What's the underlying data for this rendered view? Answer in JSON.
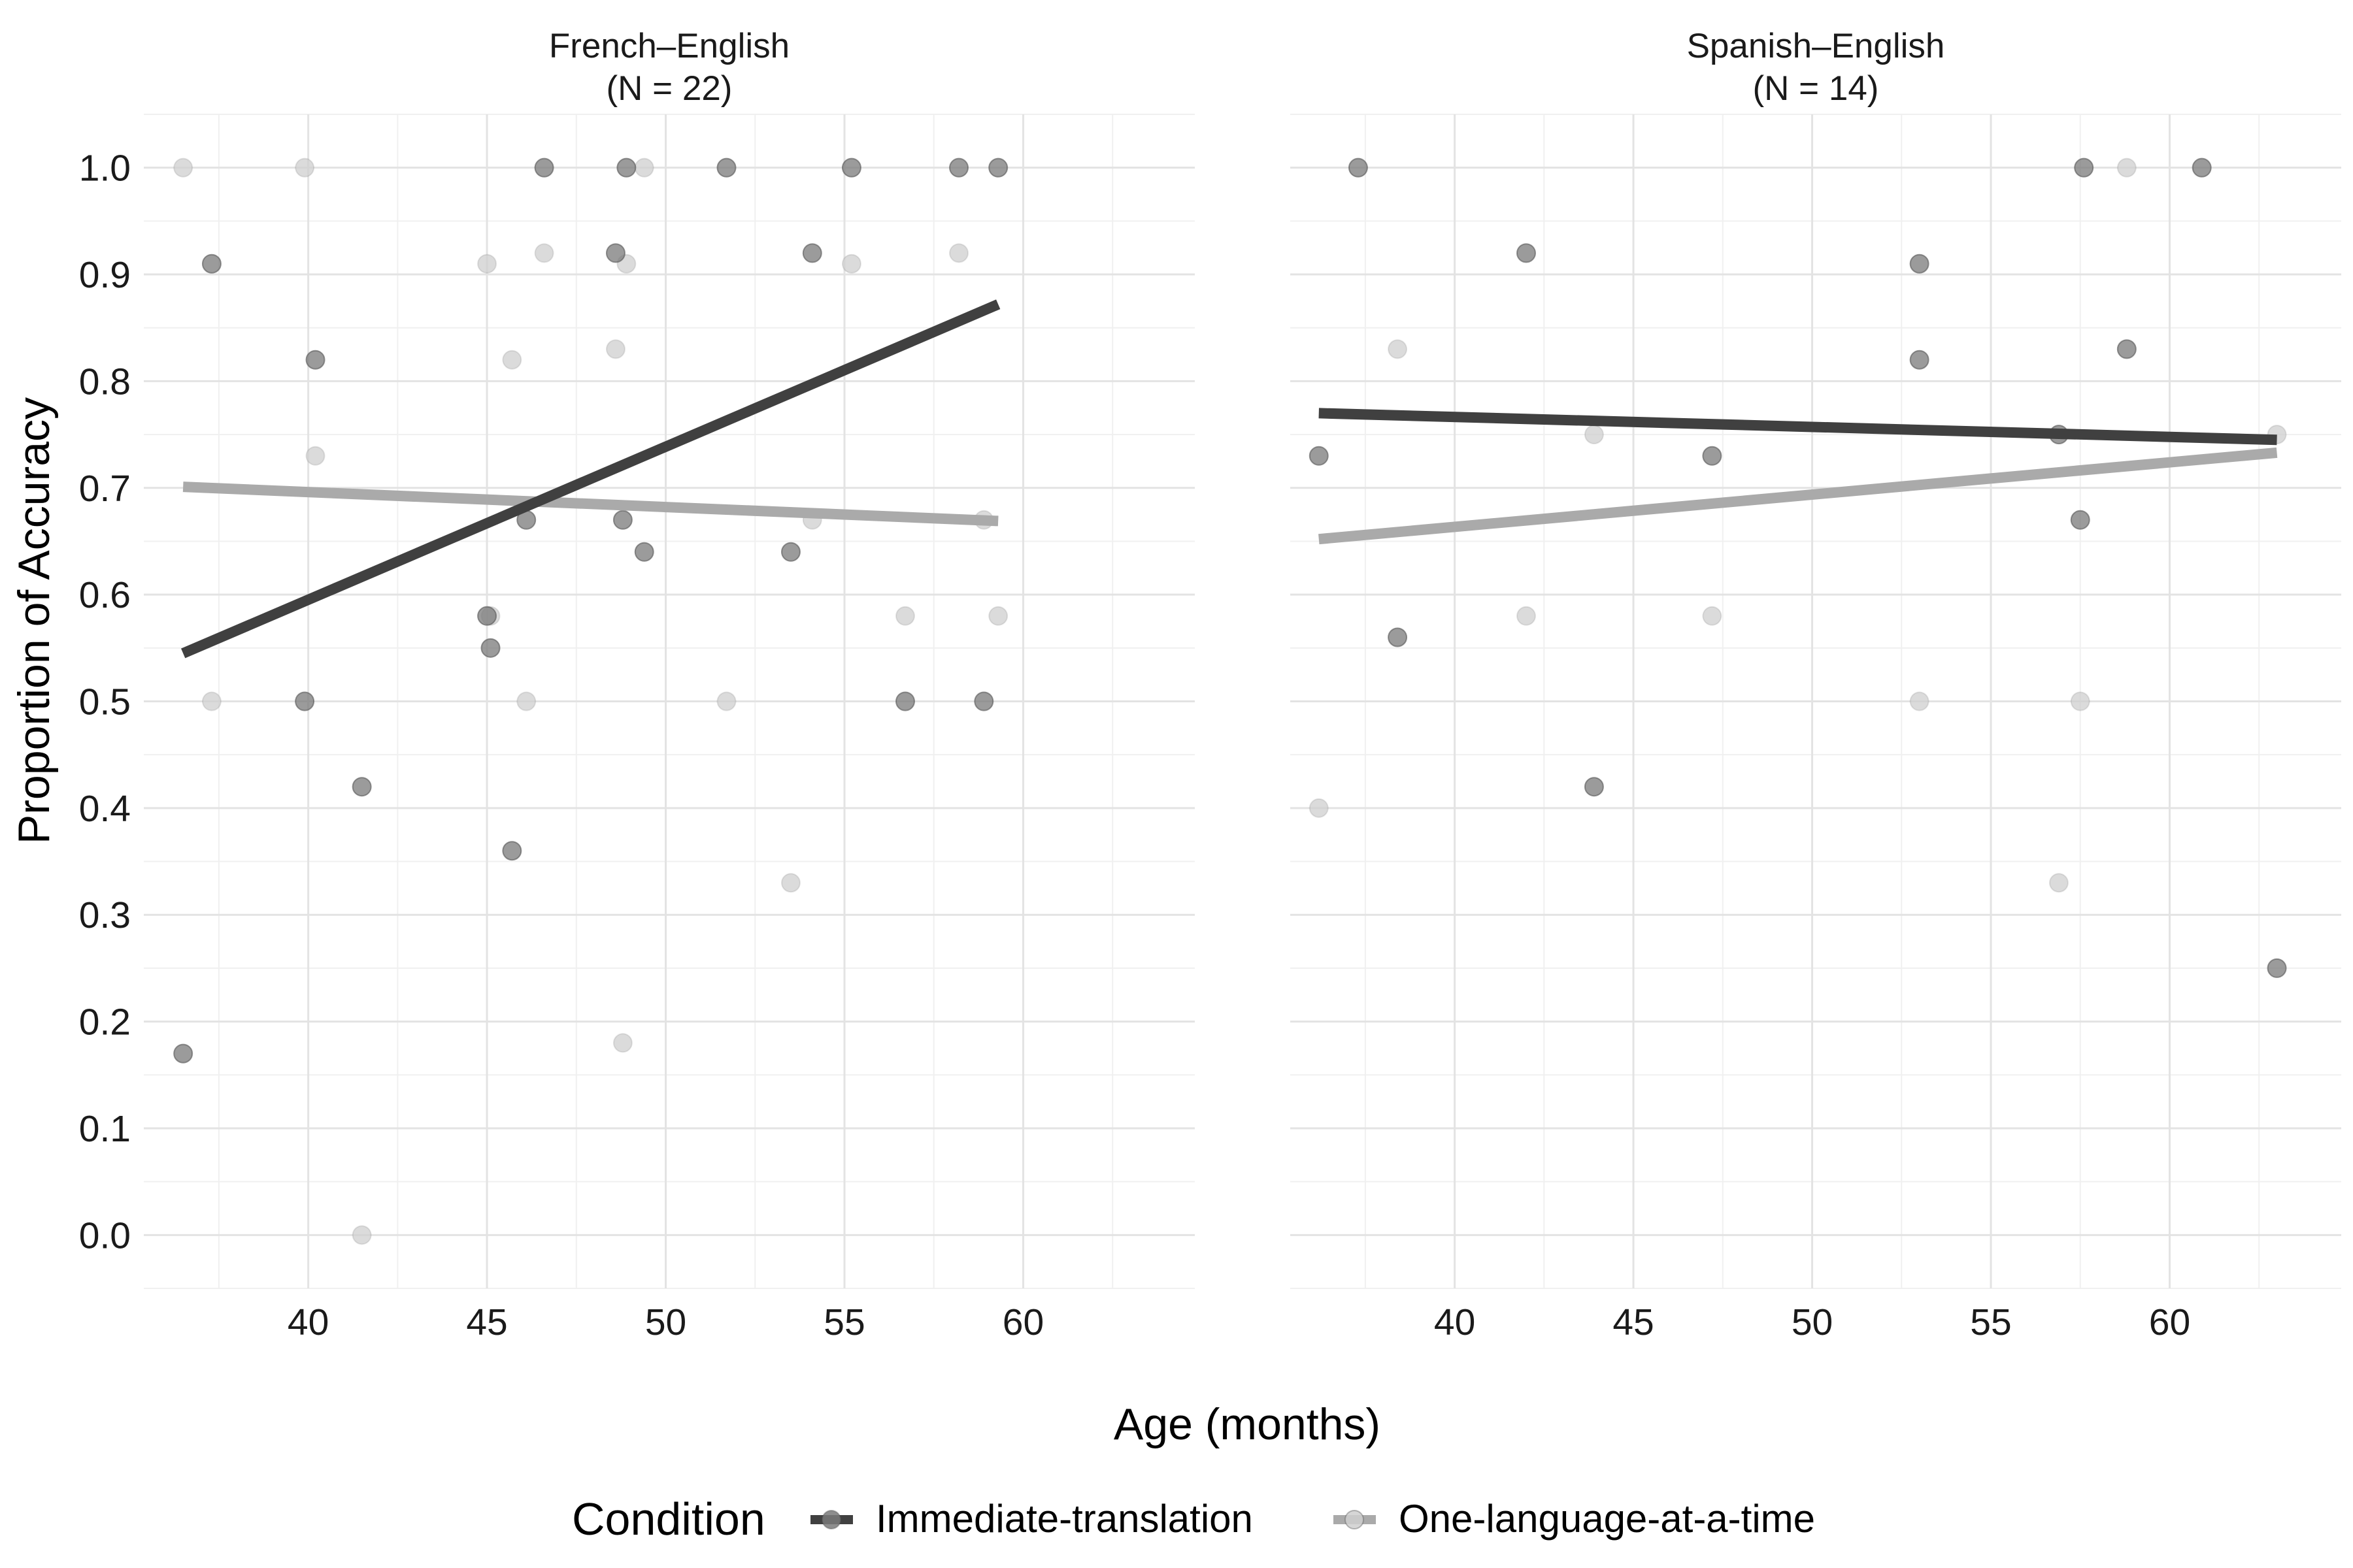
{
  "chart_data": {
    "type": "scatter",
    "xlabel": "Age (months)",
    "ylabel": "Proportion of Accuracy",
    "xlim": [
      35.4,
      64.8
    ],
    "ylim": [
      -0.05,
      1.05
    ],
    "x_ticks": [
      40,
      45,
      50,
      55,
      60
    ],
    "x_tick_labels": [
      "40",
      "45",
      "50",
      "55",
      "60"
    ],
    "y_ticks": [
      0,
      0.1,
      0.2,
      0.3,
      0.4,
      0.5,
      0.6,
      0.7,
      0.8,
      0.9,
      1.0
    ],
    "y_tick_labels": [
      "0.0",
      "0.1",
      "0.2",
      "0.3",
      "0.4",
      "0.5",
      "0.6",
      "0.7",
      "0.8",
      "0.9",
      "1.0"
    ],
    "grid": true,
    "legend": {
      "title": "Condition",
      "position": "bottom",
      "entries": [
        "Immediate-translation",
        "One-language-at-a-time"
      ]
    },
    "series_colors": {
      "Immediate-translation": "#404040",
      "One-language-at-a-time": "#aaaaaa"
    },
    "point_colors": {
      "Immediate-translation": "#7a7a7a",
      "One-language-at-a-time": "#cfcfcf"
    },
    "facets": [
      {
        "title_line1": "French–English",
        "title_line2": "(N = 22)",
        "series": [
          {
            "name": "Immediate-translation",
            "points": [
              [
                36.5,
                0.17
              ],
              [
                37.3,
                0.91
              ],
              [
                39.9,
                0.5
              ],
              [
                40.2,
                0.82
              ],
              [
                41.5,
                0.42
              ],
              [
                45.0,
                0.58
              ],
              [
                45.1,
                0.55
              ],
              [
                45.7,
                0.36
              ],
              [
                46.1,
                0.67
              ],
              [
                46.6,
                1.0
              ],
              [
                48.6,
                0.92
              ],
              [
                48.8,
                0.67
              ],
              [
                48.9,
                1.0
              ],
              [
                49.4,
                0.64
              ],
              [
                51.7,
                1.0
              ],
              [
                53.5,
                0.64
              ],
              [
                54.1,
                0.92
              ],
              [
                55.2,
                1.0
              ],
              [
                56.7,
                0.5
              ],
              [
                58.2,
                1.0
              ],
              [
                58.9,
                0.5
              ],
              [
                59.3,
                1.0
              ]
            ],
            "trend": [
              [
                36.5,
                0.545
              ],
              [
                59.3,
                0.872
              ]
            ]
          },
          {
            "name": "One-language-at-a-time",
            "points": [
              [
                36.5,
                1.0
              ],
              [
                37.3,
                0.5
              ],
              [
                39.9,
                1.0
              ],
              [
                40.2,
                0.73
              ],
              [
                41.5,
                0.0
              ],
              [
                45.0,
                0.91
              ],
              [
                45.1,
                0.58
              ],
              [
                45.7,
                0.82
              ],
              [
                46.1,
                0.5
              ],
              [
                46.6,
                0.92
              ],
              [
                48.6,
                0.83
              ],
              [
                48.8,
                0.18
              ],
              [
                48.9,
                0.91
              ],
              [
                49.4,
                1.0
              ],
              [
                51.7,
                0.5
              ],
              [
                53.5,
                0.33
              ],
              [
                54.1,
                0.67
              ],
              [
                55.2,
                0.91
              ],
              [
                56.7,
                0.58
              ],
              [
                58.2,
                0.92
              ],
              [
                58.9,
                0.67
              ],
              [
                59.3,
                0.58
              ]
            ],
            "trend": [
              [
                36.5,
                0.701
              ],
              [
                59.3,
                0.669
              ]
            ]
          }
        ]
      },
      {
        "title_line1": "Spanish–English",
        "title_line2": "(N = 14)",
        "series": [
          {
            "name": "Immediate-translation",
            "points": [
              [
                36.2,
                0.73
              ],
              [
                37.3,
                1.0
              ],
              [
                38.4,
                0.56
              ],
              [
                42.0,
                0.92
              ],
              [
                43.9,
                0.42
              ],
              [
                47.2,
                0.73
              ],
              [
                53.0,
                0.91
              ],
              [
                53.0,
                0.82
              ],
              [
                56.9,
                0.75
              ],
              [
                57.5,
                0.67
              ],
              [
                57.6,
                1.0
              ],
              [
                58.8,
                0.83
              ],
              [
                60.9,
                1.0
              ],
              [
                63.0,
                0.25
              ]
            ],
            "trend": [
              [
                36.2,
                0.77
              ],
              [
                63.0,
                0.745
              ]
            ]
          },
          {
            "name": "One-language-at-a-time",
            "points": [
              [
                36.2,
                0.4
              ],
              [
                38.4,
                0.83
              ],
              [
                42.0,
                0.58
              ],
              [
                43.9,
                0.75
              ],
              [
                47.2,
                0.58
              ],
              [
                53.0,
                0.5
              ],
              [
                56.9,
                0.33
              ],
              [
                57.5,
                0.5
              ],
              [
                58.8,
                1.0
              ],
              [
                63.0,
                0.75
              ]
            ],
            "trend": [
              [
                36.2,
                0.652
              ],
              [
                63.0,
                0.733
              ]
            ]
          }
        ]
      }
    ]
  }
}
